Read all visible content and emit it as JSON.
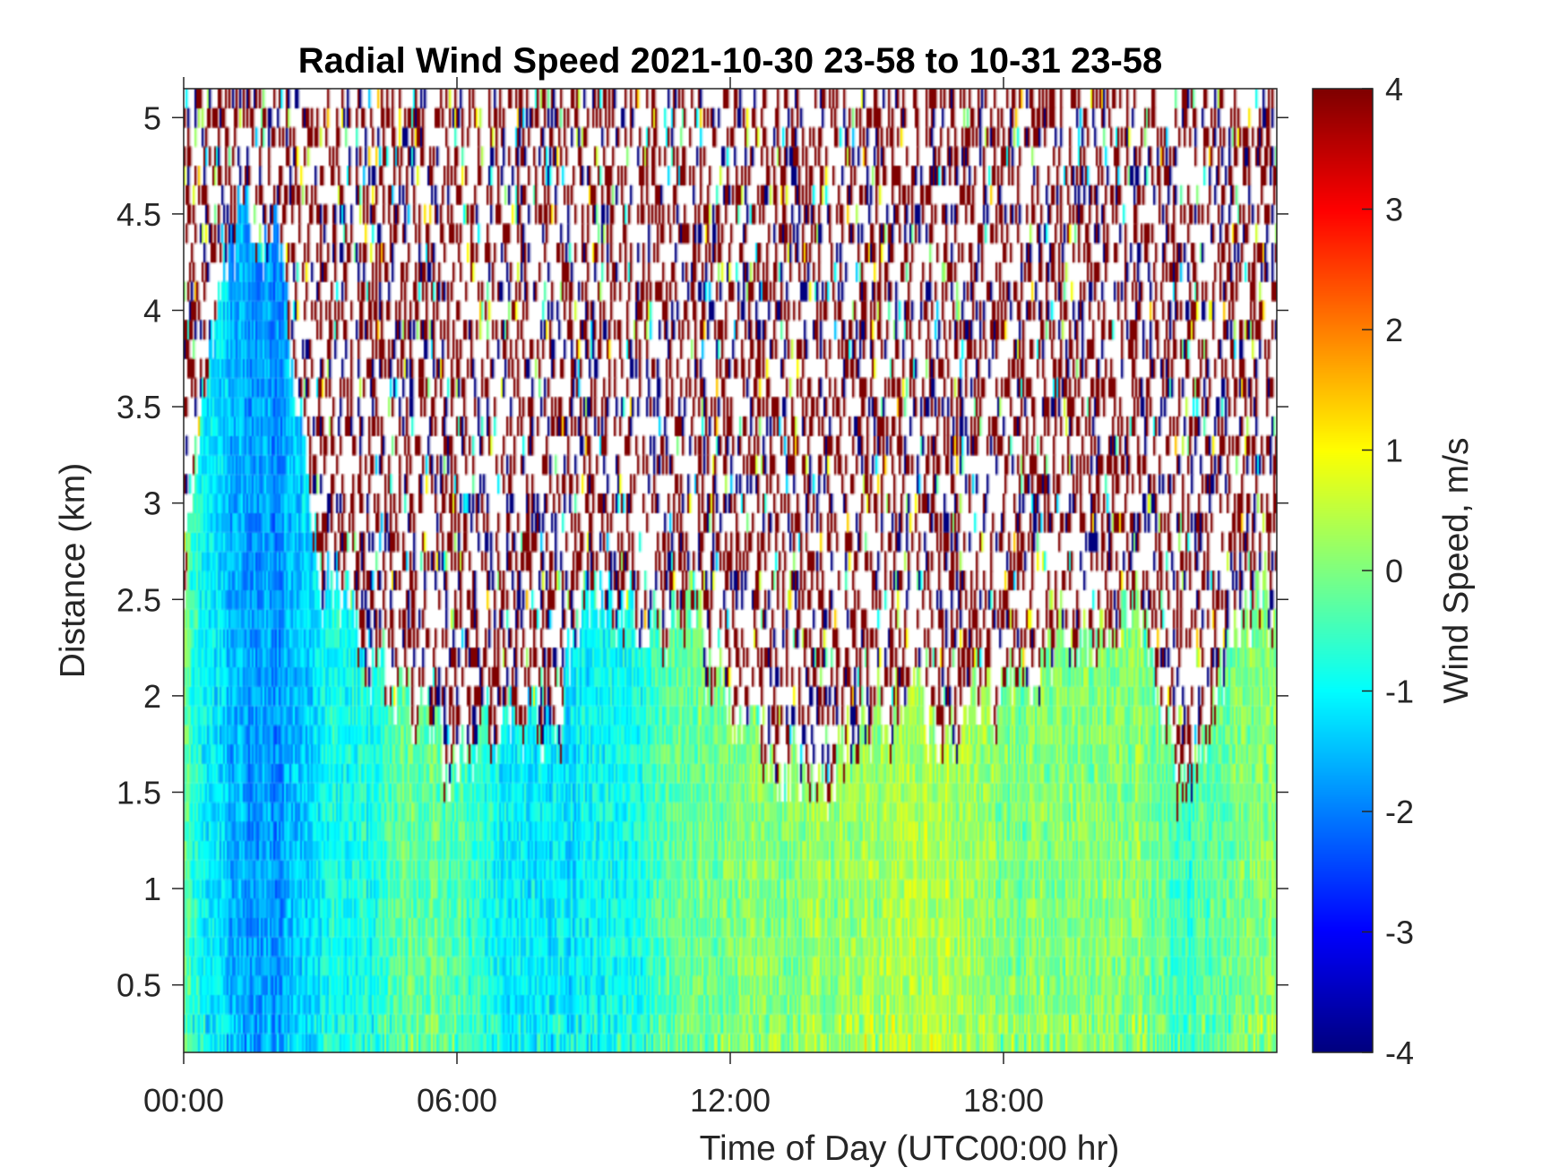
{
  "chart_data": {
    "type": "heatmap",
    "title": "Radial Wind Speed 2021-10-30 23-58 to 10-31 23-58",
    "xlabel": "Time of Day (UTC00:00 hr)",
    "ylabel": "Distance (km)",
    "xlim_hours": [
      0,
      24
    ],
    "ylim": [
      0.15,
      5.15
    ],
    "x_ticks": [
      0,
      6,
      12,
      18
    ],
    "x_tick_labels": [
      "00:00",
      "06:00",
      "12:00",
      "18:00"
    ],
    "y_ticks": [
      0.5,
      1,
      1.5,
      2,
      2.5,
      3,
      3.5,
      4,
      4.5,
      5
    ],
    "y_tick_labels": [
      "0.5",
      "1",
      "1.5",
      "2",
      "2.5",
      "3",
      "3.5",
      "4",
      "4.5",
      "5"
    ],
    "colorbar": {
      "label": "Wind Speed, m/s",
      "colormap": "jet",
      "clim": [
        -4,
        4
      ],
      "ticks": [
        4,
        3,
        2,
        1,
        0,
        -1,
        -2,
        -3,
        -4
      ],
      "tick_labels": [
        "4",
        "3",
        "2",
        "1",
        "0",
        "-1",
        "-2",
        "-3",
        "-4"
      ]
    },
    "valid_data_top_km_by_hour": [
      3.0,
      4.4,
      4.4,
      2.6,
      2.2,
      1.8,
      1.6,
      1.8,
      1.8,
      2.6,
      2.4,
      2.5,
      1.8,
      1.7,
      1.6,
      1.9,
      1.9,
      1.8,
      2.0,
      2.2,
      2.3,
      2.5,
      1.4,
      2.4
    ],
    "mean_speed_by_hour": [
      -0.4,
      -1.6,
      -1.8,
      -1.0,
      -0.8,
      -0.2,
      -0.3,
      -1.1,
      -1.2,
      -1.0,
      -0.8,
      -0.2,
      0.0,
      0.0,
      0.1,
      0.3,
      0.4,
      0.3,
      0.0,
      0.0,
      0.0,
      0.1,
      -0.6,
      0.0
    ],
    "above_valid_range": "sparse noise at +/-4 m/s with blank gaps"
  }
}
